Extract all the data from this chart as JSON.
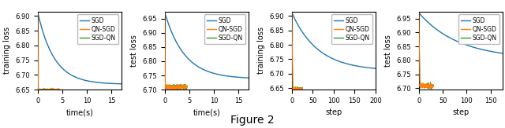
{
  "subplots": [
    {
      "xlabel": "time(s)",
      "ylabel": "training loss",
      "xlim": [
        0,
        17
      ],
      "ylim": [
        6.65,
        6.915
      ],
      "yticks": [
        6.65,
        6.7,
        6.75,
        6.8,
        6.85,
        6.9
      ],
      "xticks": [
        0,
        5,
        10,
        15
      ],
      "sgd_start": 6.91,
      "sgd_end": 6.668,
      "sgd_decay": 0.3,
      "qn_base": 6.648,
      "qn_noise": 0.002,
      "qn_xmax": 4.5,
      "type": "time"
    },
    {
      "xlabel": "time(s)",
      "ylabel": "test loss",
      "xlim": [
        0,
        17
      ],
      "ylim": [
        6.7,
        6.975
      ],
      "yticks": [
        6.7,
        6.75,
        6.8,
        6.85,
        6.9,
        6.95
      ],
      "xticks": [
        0,
        5,
        10,
        15
      ],
      "sgd_start": 6.97,
      "sgd_end": 6.738,
      "sgd_decay": 0.25,
      "qn_base": 6.708,
      "qn_noise": 0.004,
      "qn_xmax": 4.5,
      "type": "time"
    },
    {
      "xlabel": "step",
      "ylabel": "training loss",
      "xlim": [
        0,
        200
      ],
      "ylim": [
        6.645,
        6.915
      ],
      "yticks": [
        6.65,
        6.7,
        6.75,
        6.8,
        6.85,
        6.9
      ],
      "xticks": [
        0,
        50,
        100,
        150,
        200
      ],
      "sgd_start": 6.91,
      "sgd_end": 6.71,
      "sgd_decay": 0.016,
      "qn_base": 6.648,
      "qn_noise": 0.002,
      "qn_xmax": 25,
      "type": "step"
    },
    {
      "xlabel": "step",
      "ylabel": "test loss",
      "xlim": [
        0,
        175
      ],
      "ylim": [
        6.695,
        6.975
      ],
      "yticks": [
        6.7,
        6.75,
        6.8,
        6.85,
        6.9,
        6.95
      ],
      "xticks": [
        0,
        50,
        100,
        150
      ],
      "sgd_start": 6.97,
      "sgd_end": 6.805,
      "sgd_decay": 0.012,
      "qn_base": 6.708,
      "qn_noise": 0.004,
      "qn_xmax": 30,
      "type": "step"
    }
  ],
  "colors": {
    "SGD": "#1f77b4",
    "QN-SGD": "#ff7f0e",
    "SGD-QN": "#2ca02c"
  },
  "legend_labels": [
    "SGD",
    "QN-SGD",
    "SGD-QN"
  ],
  "figure_title": "Figure 2",
  "title_fontsize": 10,
  "figsize": [
    6.4,
    1.63
  ],
  "dpi": 100
}
